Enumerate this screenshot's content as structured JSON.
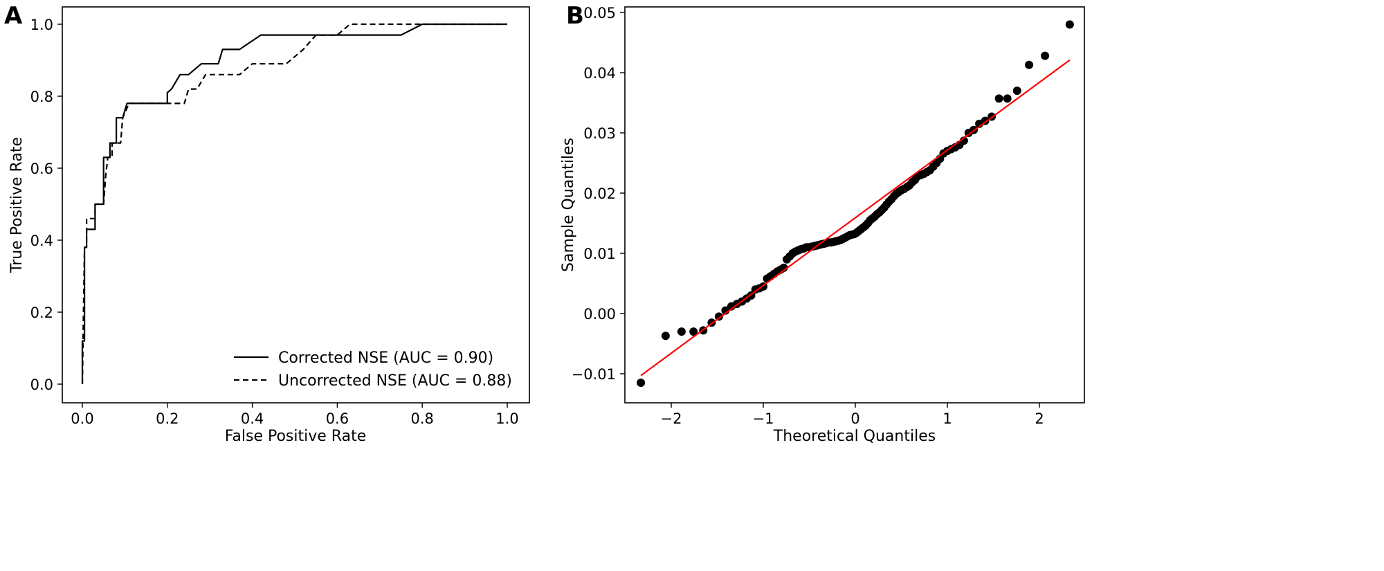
{
  "chart_data": [
    {
      "panel_label": "A",
      "type": "line",
      "xlabel": "False Positive Rate",
      "ylabel": "True Positive Rate",
      "xlim": [
        -0.05,
        1.05
      ],
      "ylim": [
        -0.05,
        1.05
      ],
      "xticks": [
        "0.0",
        "0.2",
        "0.4",
        "0.6",
        "0.8",
        "1.0"
      ],
      "yticks": [
        "0.0",
        "0.2",
        "0.4",
        "0.6",
        "0.8",
        "1.0"
      ],
      "grid": false,
      "legend_position": "lower-right",
      "series": [
        {
          "name": "Corrected NSE (AUC = 0.90)",
          "style": "solid",
          "color": "#000000",
          "points": [
            [
              0,
              0
            ],
            [
              0,
              0.12
            ],
            [
              0.005,
              0.12
            ],
            [
              0.005,
              0.38
            ],
            [
              0.01,
              0.38
            ],
            [
              0.01,
              0.43
            ],
            [
              0.03,
              0.43
            ],
            [
              0.03,
              0.5
            ],
            [
              0.05,
              0.5
            ],
            [
              0.05,
              0.63
            ],
            [
              0.065,
              0.63
            ],
            [
              0.065,
              0.67
            ],
            [
              0.08,
              0.67
            ],
            [
              0.08,
              0.74
            ],
            [
              0.095,
              0.74
            ],
            [
              0.105,
              0.78
            ],
            [
              0.2,
              0.78
            ],
            [
              0.2,
              0.81
            ],
            [
              0.21,
              0.82
            ],
            [
              0.23,
              0.86
            ],
            [
              0.25,
              0.86
            ],
            [
              0.28,
              0.89
            ],
            [
              0.32,
              0.89
            ],
            [
              0.33,
              0.93
            ],
            [
              0.37,
              0.93
            ],
            [
              0.42,
              0.97
            ],
            [
              0.75,
              0.97
            ],
            [
              0.8,
              1.0
            ],
            [
              1,
              1
            ]
          ]
        },
        {
          "name": "Uncorrected NSE (AUC = 0.88)",
          "style": "dashed",
          "color": "#000000",
          "points": [
            [
              0,
              0
            ],
            [
              0.005,
              0.38
            ],
            [
              0.01,
              0.38
            ],
            [
              0.01,
              0.46
            ],
            [
              0.03,
              0.46
            ],
            [
              0.03,
              0.5
            ],
            [
              0.05,
              0.5
            ],
            [
              0.055,
              0.58
            ],
            [
              0.06,
              0.63
            ],
            [
              0.07,
              0.63
            ],
            [
              0.07,
              0.67
            ],
            [
              0.09,
              0.67
            ],
            [
              0.095,
              0.74
            ],
            [
              0.11,
              0.78
            ],
            [
              0.24,
              0.78
            ],
            [
              0.25,
              0.82
            ],
            [
              0.27,
              0.82
            ],
            [
              0.29,
              0.86
            ],
            [
              0.37,
              0.86
            ],
            [
              0.4,
              0.89
            ],
            [
              0.48,
              0.89
            ],
            [
              0.52,
              0.93
            ],
            [
              0.55,
              0.97
            ],
            [
              0.6,
              0.97
            ],
            [
              0.63,
              1.0
            ],
            [
              1,
              1
            ]
          ]
        }
      ]
    },
    {
      "panel_label": "B",
      "type": "scatter",
      "xlabel": "Theoretical Quantiles",
      "ylabel": "Sample Quantiles",
      "xlim": [
        -2.5,
        2.5
      ],
      "ylim": [
        -0.0145,
        0.0505
      ],
      "xticks": [
        "−2",
        "−1",
        "0",
        "1",
        "2"
      ],
      "xtick_values": [
        -2,
        -1,
        0,
        1,
        2
      ],
      "yticks": [
        "−0.01",
        "0.00",
        "0.01",
        "0.02",
        "0.03",
        "0.04",
        "0.05"
      ],
      "ytick_values": [
        -0.01,
        0,
        0.01,
        0.02,
        0.03,
        0.04,
        0.05
      ],
      "grid": false,
      "marker_color": "#000000",
      "line_color": "#ff0000",
      "reference_line": [
        [
          -2.33,
          -0.0103
        ],
        [
          2.33,
          0.0421
        ]
      ],
      "sample_quantiles": [
        -0.0115,
        -0.0037,
        -0.003,
        -0.003,
        -0.0028,
        -0.0015,
        -0.0005,
        0.0005,
        0.0012,
        0.0016,
        0.002,
        0.0025,
        0.003,
        0.004,
        0.0042,
        0.0045,
        0.0058,
        0.0062,
        0.0066,
        0.007,
        0.0073,
        0.0076,
        0.009,
        0.0095,
        0.01,
        0.0103,
        0.0105,
        0.0107,
        0.0108,
        0.011,
        0.011,
        0.0111,
        0.0112,
        0.0113,
        0.0114,
        0.0115,
        0.0116,
        0.0117,
        0.0118,
        0.0118,
        0.0119,
        0.012,
        0.0121,
        0.0122,
        0.0124,
        0.0126,
        0.0128,
        0.013,
        0.0131,
        0.0132,
        0.0134,
        0.0137,
        0.014,
        0.0143,
        0.0146,
        0.015,
        0.0155,
        0.0158,
        0.0161,
        0.0165,
        0.0168,
        0.0172,
        0.0176,
        0.0181,
        0.0186,
        0.019,
        0.0195,
        0.0199,
        0.0202,
        0.0205,
        0.0207,
        0.021,
        0.0213,
        0.0218,
        0.0222,
        0.0228,
        0.023,
        0.0232,
        0.0235,
        0.0238,
        0.0244,
        0.025,
        0.0257,
        0.0266,
        0.027,
        0.0273,
        0.0276,
        0.028,
        0.0287,
        0.03,
        0.0305,
        0.0315,
        0.032,
        0.0327,
        0.0357,
        0.0357,
        0.037,
        0.0413,
        0.0428,
        0.048
      ]
    }
  ]
}
